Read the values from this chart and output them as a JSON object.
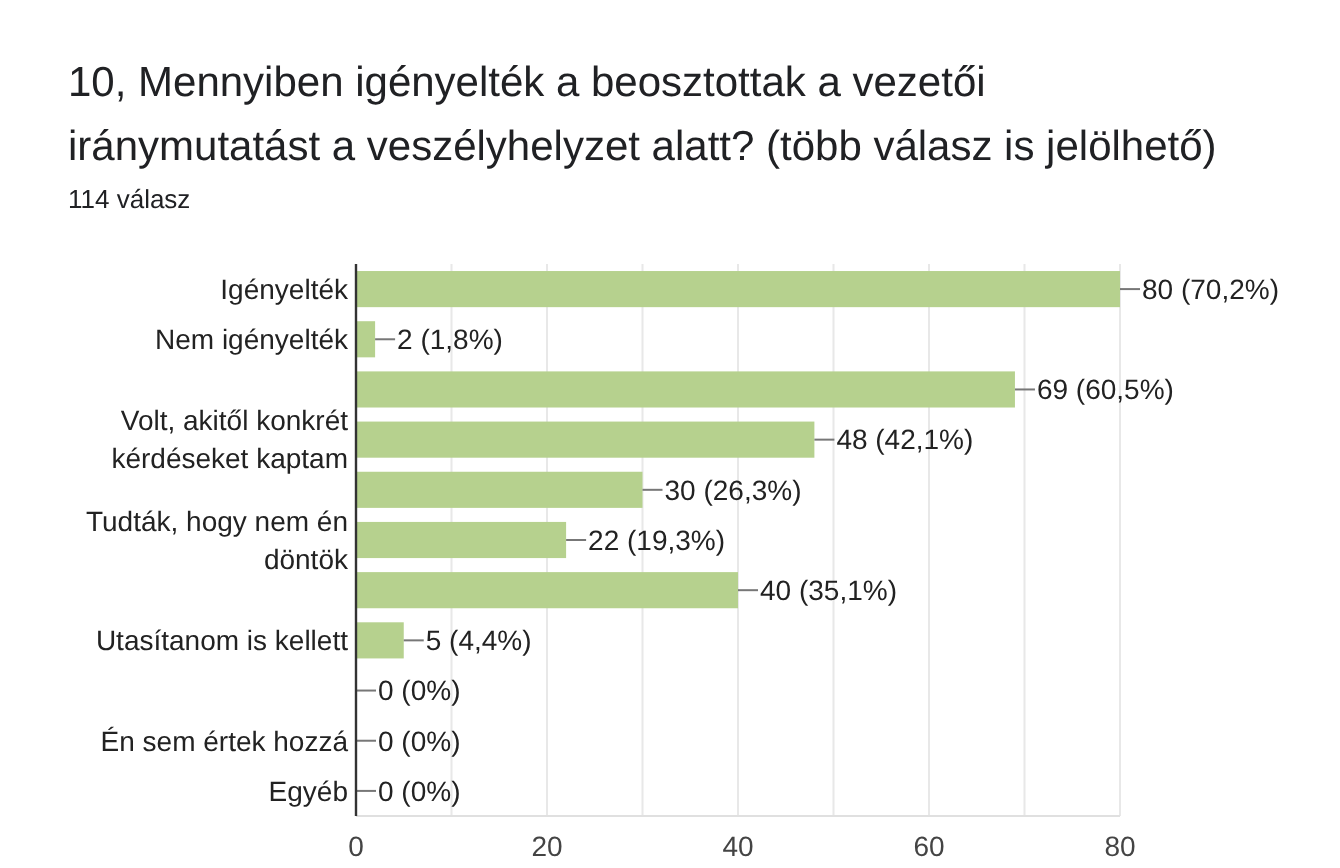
{
  "chart_data": {
    "type": "bar",
    "orientation": "horizontal",
    "title": "10, Mennyiben igényelték a beosztottak a vezetői iránymutatást a veszélyhelyzet alatt? (több válasz is jelölhető)",
    "subtitle": "114 válasz",
    "categories": [
      "Igényelték",
      "Nem igényelték",
      null,
      "Volt, akitől konkrét kérdéseket kaptam",
      null,
      "Tudták, hogy nem én döntök",
      null,
      "Utasítanom is kellett",
      null,
      "Én sem értek hozzá",
      "Egyéb"
    ],
    "values": [
      80,
      2,
      69,
      48,
      30,
      22,
      40,
      5,
      0,
      0,
      0
    ],
    "value_labels": [
      "80 (70,2%)",
      "2 (1,8%)",
      "69 (60,5%)",
      "48 (42,1%)",
      "30 (26,3%)",
      "22 (19,3%)",
      "40 (35,1%)",
      "5 (4,4%)",
      "0 (0%)",
      "0 (0%)",
      "0 (0%)"
    ],
    "color": "#b6d18e",
    "xlim": [
      0,
      80
    ],
    "xticks": [
      0,
      {
        "value": 10,
        "label": null
      },
      20,
      {
        "value": 30,
        "label": null
      },
      40,
      {
        "value": 50,
        "label": null
      },
      60,
      {
        "value": 70,
        "label": null
      },
      80
    ],
    "grid": true
  }
}
